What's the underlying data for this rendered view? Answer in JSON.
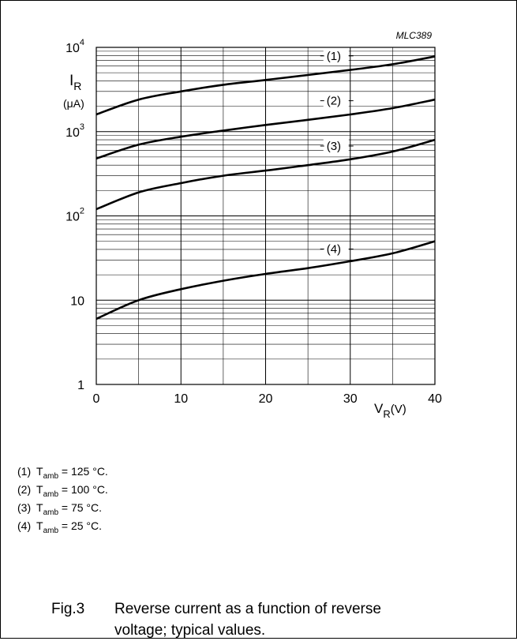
{
  "figure_code": "MLC389",
  "chart_data": {
    "type": "line",
    "title": "",
    "xlabel": "V",
    "xlabel_sub": "R",
    "xlabel_unit": "(V)",
    "ylabel": "I",
    "ylabel_sub": "R",
    "ylabel_unit": "(μA)",
    "x_scale": "linear",
    "y_scale": "log",
    "xlim": [
      0,
      40
    ],
    "ylim": [
      1,
      10000
    ],
    "x_ticks": [
      0,
      10,
      20,
      30,
      40
    ],
    "x_tick_labels": [
      "0",
      "10",
      "20",
      "30",
      "40"
    ],
    "y_ticks": [
      1,
      10,
      100,
      1000,
      10000
    ],
    "y_tick_labels": [
      {
        "base": "1",
        "exp": ""
      },
      {
        "base": "10",
        "exp": ""
      },
      {
        "base": "10",
        "exp": "2"
      },
      {
        "base": "10",
        "exp": "3"
      },
      {
        "base": "10",
        "exp": "4"
      }
    ],
    "grid": true,
    "x": [
      0,
      5,
      10,
      15,
      20,
      25,
      30,
      35,
      40
    ],
    "series": [
      {
        "name": "(1)",
        "values": [
          1600,
          2400,
          3000,
          3600,
          4100,
          4700,
          5400,
          6300,
          7800
        ]
      },
      {
        "name": "(2)",
        "values": [
          480,
          700,
          870,
          1030,
          1200,
          1380,
          1600,
          1900,
          2400
        ]
      },
      {
        "name": "(3)",
        "values": [
          120,
          190,
          245,
          300,
          345,
          400,
          470,
          580,
          800
        ]
      },
      {
        "name": "(4)",
        "values": [
          6,
          10,
          13.5,
          17,
          20.5,
          24,
          29,
          36,
          50
        ]
      }
    ]
  },
  "legend": [
    {
      "num": "(1)",
      "symbol": "T",
      "sub": "amb",
      "text": " = 125 °C."
    },
    {
      "num": "(2)",
      "symbol": "T",
      "sub": "amb",
      "text": " = 100 °C."
    },
    {
      "num": "(3)",
      "symbol": "T",
      "sub": "amb",
      "text": " = 75 °C."
    },
    {
      "num": "(4)",
      "symbol": "T",
      "sub": "amb",
      "text": " = 25 °C."
    }
  ],
  "caption": {
    "fig": "Fig.3",
    "text": "Reverse current as a function of reverse voltage; typical values."
  }
}
